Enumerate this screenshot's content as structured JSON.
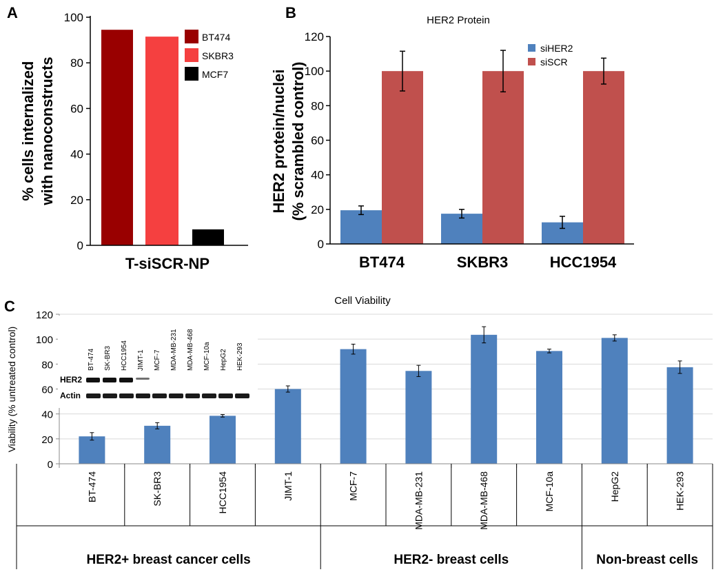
{
  "chart_data": [
    {
      "panel": "A",
      "type": "bar",
      "title": "",
      "categories": [
        "BT474",
        "SKBR3",
        "MCF7"
      ],
      "values": [
        94.5,
        91.5,
        7
      ],
      "colors": [
        "#990000",
        "#f54040",
        "#000000"
      ],
      "xlabel": "T-siSCR-NP",
      "ylabel_lines": [
        "% cells internalized",
        "with nanoconstructs"
      ],
      "ylim": [
        0,
        100
      ],
      "yticks": [
        "0",
        "20",
        "40",
        "60",
        "80",
        "100"
      ],
      "legend": [
        "BT474",
        "SKBR3",
        "MCF7"
      ],
      "legend_position": "top-right",
      "grid": false
    },
    {
      "panel": "B",
      "type": "bar",
      "title": "HER2 Protein",
      "categories": [
        "BT474",
        "SKBR3",
        "HCC1954"
      ],
      "series": [
        {
          "name": "siHER2",
          "color": "#4f81bd",
          "values": [
            19.5,
            17.5,
            12.5
          ],
          "errors": [
            2.5,
            2.5,
            3.5
          ]
        },
        {
          "name": "siSCR",
          "color": "#c0504d",
          "values": [
            100,
            100,
            100
          ],
          "errors": [
            11.5,
            12,
            7.5
          ]
        }
      ],
      "ylabel_lines": [
        "HER2 protein/nuclei",
        "(% scrambled control)"
      ],
      "ylim": [
        0,
        120
      ],
      "yticks": [
        "0",
        "20",
        "40",
        "60",
        "80",
        "100",
        "120"
      ],
      "legend_position": "top-right",
      "grid": false
    },
    {
      "panel": "C",
      "type": "bar",
      "title": "Cell Viability",
      "categories": [
        "BT-474",
        "SK-BR3",
        "HCC1954",
        "JIMT-1",
        "MCF-7",
        "MDA-MB-231",
        "MDA-MB-468",
        "MCF-10a",
        "HepG2",
        "HEK-293"
      ],
      "values": [
        22,
        30.5,
        38.5,
        60,
        92,
        74.5,
        103.5,
        90.5,
        101,
        77.5
      ],
      "errors": [
        3,
        2.5,
        1,
        2.5,
        4,
        4.5,
        6.5,
        1.5,
        2.5,
        5
      ],
      "color": "#4f81bd",
      "ylabel": "Viability (% untreated control)",
      "ylim": [
        0,
        120
      ],
      "yticks": [
        "0",
        "20",
        "40",
        "60",
        "80",
        "100",
        "120"
      ],
      "groups": [
        {
          "label": "HER2+ breast cancer cells",
          "from": 0,
          "to": 3
        },
        {
          "label": "HER2- breast cells",
          "from": 4,
          "to": 7
        },
        {
          "label": "Non-breast cells",
          "from": 8,
          "to": 9
        }
      ],
      "grid": true
    }
  ],
  "panel_labels": {
    "a": "A",
    "b": "B",
    "c": "C"
  },
  "inset_blot": {
    "lanes": [
      "BT-474",
      "SK-BR3",
      "HCC1954",
      "JIMT-1",
      "MCF-7",
      "MDA-MB-231",
      "MDA-MB-468",
      "MCF-10a",
      "HepG2",
      "HEK-293"
    ],
    "rows": [
      "HER2",
      "Actin"
    ],
    "her2_intensity": [
      1,
      1,
      1,
      0.25,
      0,
      0,
      0,
      0,
      0,
      0
    ]
  }
}
